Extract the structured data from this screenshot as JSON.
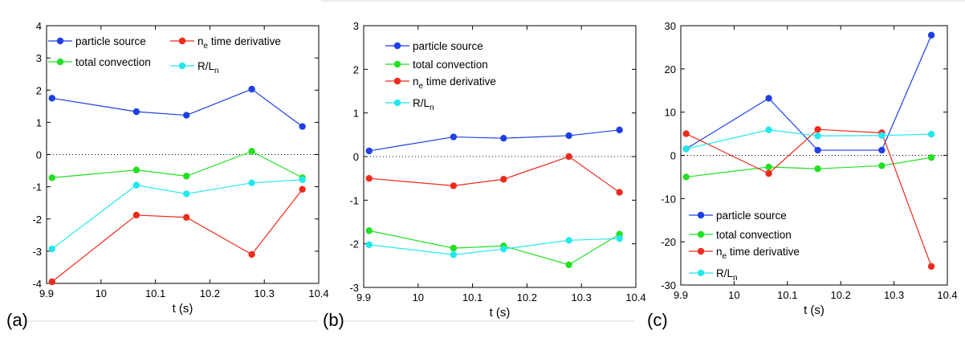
{
  "colors": {
    "particle_source": "#1f3fe6",
    "total_convection": "#22e022",
    "ne_time_derivative": "#ee2a1c",
    "R_Ln": "#22e8ee"
  },
  "chart_data": [
    {
      "type": "line",
      "panel_label": "(a)",
      "xlabel": "t (s)",
      "ylabel": "",
      "xlim": [
        9.9,
        10.4
      ],
      "ylim": [
        -4,
        4
      ],
      "xticks": [
        "9.9",
        "10",
        "10.1",
        "10.2",
        "10.3",
        "10.4"
      ],
      "yticks": [
        "4",
        "3",
        "2",
        "1",
        "0",
        "-1",
        "-2",
        "-3",
        "-4"
      ],
      "zero_line": true,
      "legend_position": "top",
      "x": [
        9.91,
        10.065,
        10.157,
        10.277,
        10.37
      ],
      "series": [
        {
          "name": "particle source",
          "color": "#1f3fe6",
          "values": [
            1.75,
            1.33,
            1.22,
            2.03,
            0.87
          ]
        },
        {
          "name": "total convection",
          "color": "#22e022",
          "values": [
            -0.72,
            -0.48,
            -0.67,
            0.1,
            -0.72
          ]
        },
        {
          "name": "n_e time derivative",
          "color": "#ee2a1c",
          "values": [
            -3.95,
            -1.88,
            -1.95,
            -3.1,
            -1.08
          ]
        },
        {
          "name": "R/L_n",
          "color": "#22e8ee",
          "values": [
            -2.93,
            -0.95,
            -1.22,
            -0.88,
            -0.78
          ]
        }
      ]
    },
    {
      "type": "line",
      "panel_label": "(b)",
      "xlabel": "t (s)",
      "ylabel": "",
      "xlim": [
        9.9,
        10.4
      ],
      "ylim": [
        -3,
        3
      ],
      "xticks": [
        "9.9",
        "10",
        "10.1",
        "10.2",
        "10.3",
        "10.4"
      ],
      "yticks": [
        "3",
        "2",
        "1",
        "0",
        "-1",
        "-2",
        "-3"
      ],
      "zero_line": true,
      "legend_position": "top",
      "x": [
        9.91,
        10.065,
        10.157,
        10.277,
        10.37
      ],
      "series": [
        {
          "name": "particle source",
          "color": "#1f3fe6",
          "values": [
            0.13,
            0.45,
            0.42,
            0.48,
            0.61
          ]
        },
        {
          "name": "total convection",
          "color": "#22e022",
          "values": [
            -1.7,
            -2.1,
            -2.05,
            -2.48,
            -1.78
          ]
        },
        {
          "name": "n_e time derivative",
          "color": "#ee2a1c",
          "values": [
            -0.5,
            -0.67,
            -0.52,
            0.0,
            -0.82
          ]
        },
        {
          "name": "R/L_n",
          "color": "#22e8ee",
          "values": [
            -2.02,
            -2.25,
            -2.12,
            -1.92,
            -1.88
          ]
        }
      ]
    },
    {
      "type": "line",
      "panel_label": "(c)",
      "xlabel": "t (s)",
      "ylabel": "",
      "xlim": [
        9.9,
        10.4
      ],
      "ylim": [
        -30,
        30
      ],
      "xticks": [
        "9.9",
        "10",
        "10.1",
        "10.2",
        "10.3",
        "10.4"
      ],
      "yticks": [
        "30",
        "20",
        "10",
        "0",
        "-10",
        "-20",
        "-30"
      ],
      "zero_line": true,
      "legend_position": "bottom-left",
      "x": [
        9.91,
        10.065,
        10.157,
        10.277,
        10.37
      ],
      "series": [
        {
          "name": "particle source",
          "color": "#1f3fe6",
          "values": [
            1.5,
            13.2,
            1.2,
            1.2,
            27.8
          ]
        },
        {
          "name": "total convection",
          "color": "#22e022",
          "values": [
            -5.0,
            -2.7,
            -3.1,
            -2.4,
            -0.5
          ]
        },
        {
          "name": "n_e time derivative",
          "color": "#ee2a1c",
          "values": [
            5.0,
            -4.2,
            6.0,
            5.2,
            -25.7
          ]
        },
        {
          "name": "R/L_n",
          "color": "#22e8ee",
          "values": [
            1.5,
            5.9,
            4.5,
            4.6,
            4.9
          ]
        }
      ]
    }
  ]
}
